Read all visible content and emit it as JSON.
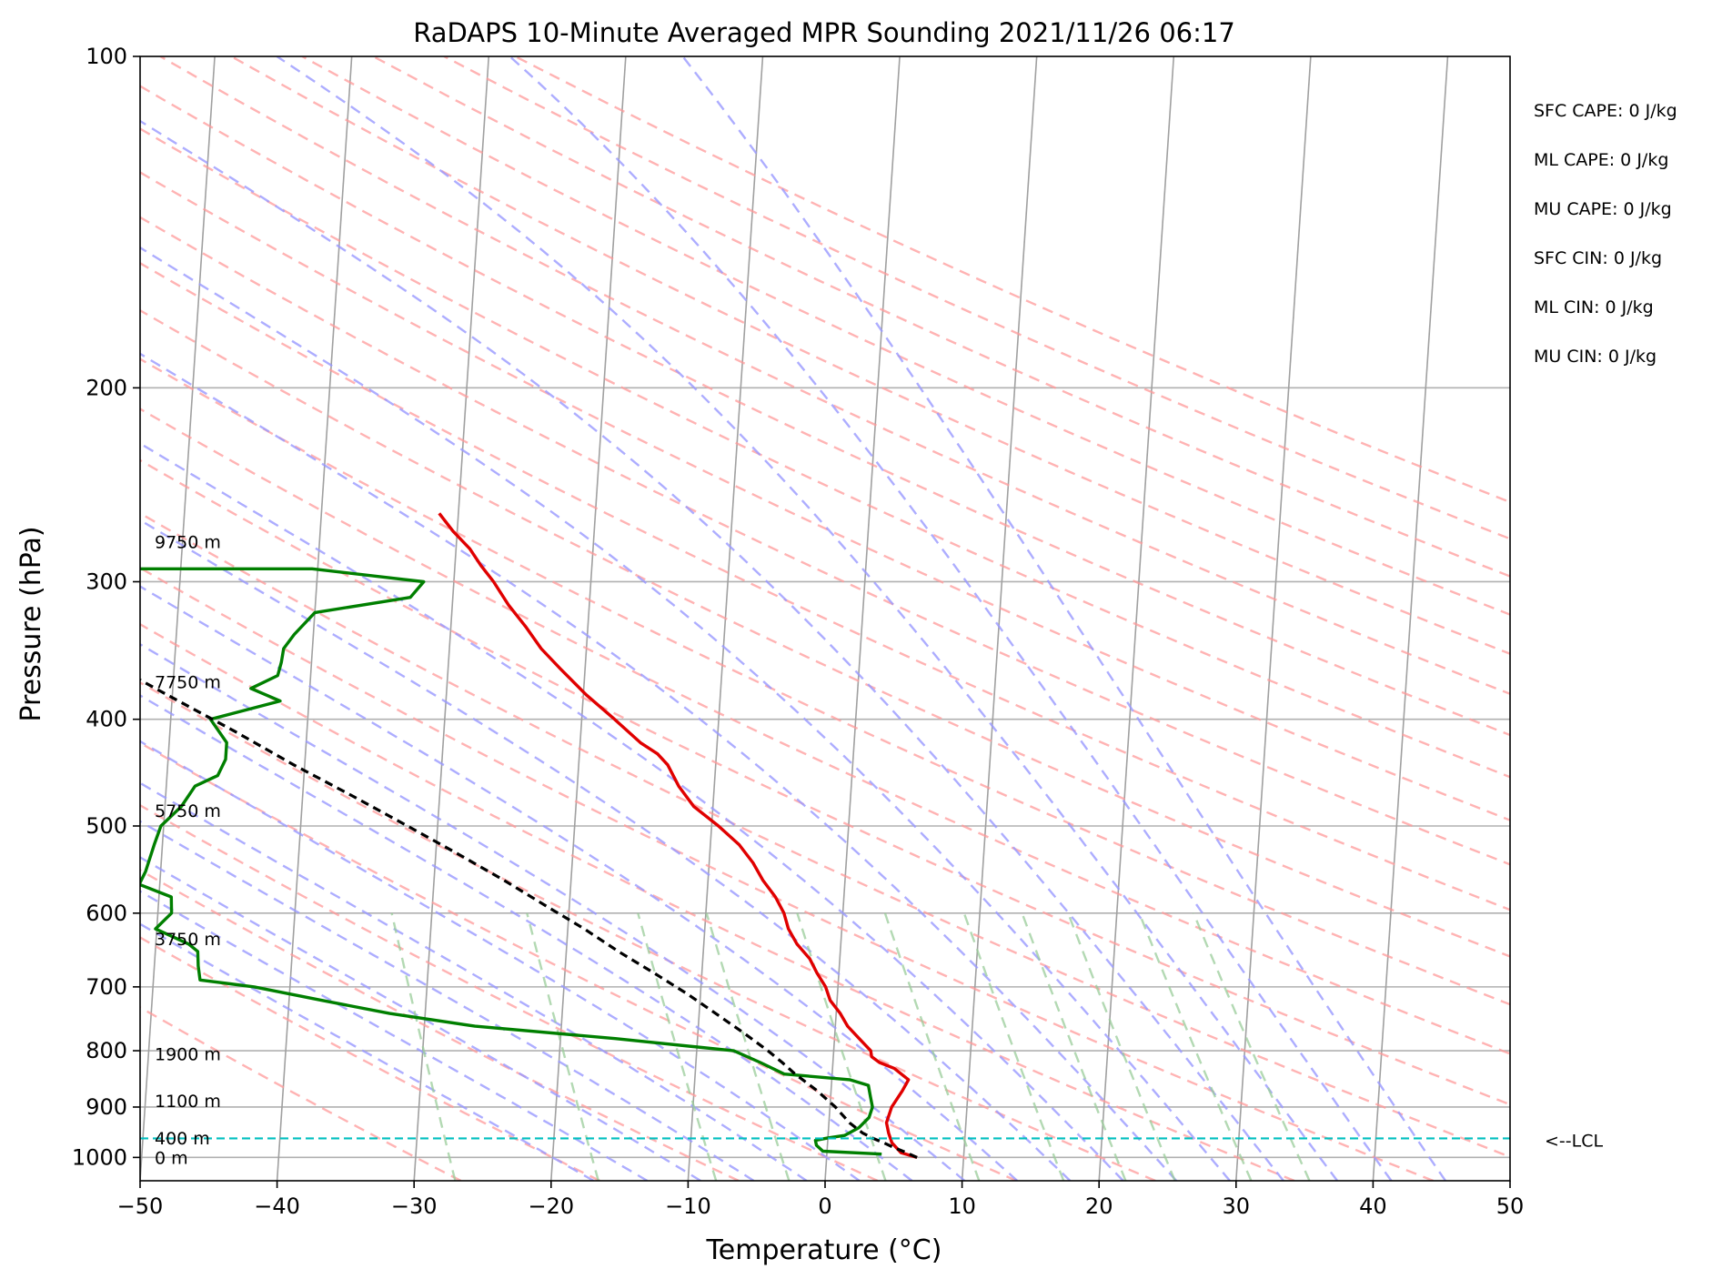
{
  "chart_data": {
    "type": "line",
    "title": "RaDAPS 10-Minute Averaged MPR Sounding 2021/11/26 06:17",
    "xlabel": "Temperature (°C)",
    "ylabel": "Pressure (hPa)",
    "xlim": [
      -50,
      50
    ],
    "ylim": [
      1050,
      100
    ],
    "y_scale": "log",
    "grid": true,
    "skew": "skew-T log-p",
    "x_ticks": [
      -50,
      -40,
      -30,
      -20,
      -10,
      0,
      10,
      20,
      30,
      40,
      50
    ],
    "y_ticks": [
      100,
      200,
      300,
      400,
      500,
      600,
      700,
      800,
      900,
      1000
    ],
    "series": [
      {
        "name": "",
        "role": "temperature",
        "color": "#e00000",
        "points": [
          [
            6.6,
            1000
          ],
          [
            5.4,
            990
          ],
          [
            4.7,
            970
          ],
          [
            4.4,
            950
          ],
          [
            4.2,
            930
          ],
          [
            4.5,
            900
          ],
          [
            5.2,
            870
          ],
          [
            5.6,
            850
          ],
          [
            4.5,
            830
          ],
          [
            3.4,
            820
          ],
          [
            2.8,
            810
          ],
          [
            2.7,
            800
          ],
          [
            1.8,
            780
          ],
          [
            0.9,
            760
          ],
          [
            0.3,
            740
          ],
          [
            -0.5,
            720
          ],
          [
            -0.9,
            700
          ],
          [
            -1.6,
            680
          ],
          [
            -2.2,
            660
          ],
          [
            -3.2,
            640
          ],
          [
            -3.9,
            620
          ],
          [
            -4.3,
            600
          ],
          [
            -5.0,
            580
          ],
          [
            -6.0,
            560
          ],
          [
            -6.8,
            540
          ],
          [
            -7.9,
            520
          ],
          [
            -9.5,
            500
          ],
          [
            -11.4,
            480
          ],
          [
            -12.6,
            460
          ],
          [
            -13.5,
            440
          ],
          [
            -14.3,
            430
          ],
          [
            -15.6,
            420
          ],
          [
            -17.6,
            400
          ],
          [
            -19.8,
            380
          ],
          [
            -21.8,
            360
          ],
          [
            -23.3,
            345
          ],
          [
            -24.5,
            330
          ],
          [
            -25.9,
            315
          ],
          [
            -27.1,
            300
          ],
          [
            -28.1,
            290
          ],
          [
            -29.0,
            280
          ],
          [
            -30.3,
            270
          ],
          [
            -31.4,
            260
          ]
        ]
      },
      {
        "name": "",
        "role": "dewpoint",
        "color": "#007f00",
        "points": [
          [
            4.0,
            993
          ],
          [
            -0.3,
            987
          ],
          [
            -0.8,
            975
          ],
          [
            -0.9,
            965
          ],
          [
            0.0,
            960
          ],
          [
            1.2,
            955
          ],
          [
            2.2,
            940
          ],
          [
            2.9,
            920
          ],
          [
            3.1,
            900
          ],
          [
            2.9,
            880
          ],
          [
            2.7,
            860
          ],
          [
            1.3,
            850
          ],
          [
            -3.5,
            840
          ],
          [
            -5.3,
            820
          ],
          [
            -7.3,
            800
          ],
          [
            -16.0,
            780
          ],
          [
            -26.3,
            760
          ],
          [
            -32.6,
            740
          ],
          [
            -37.6,
            720
          ],
          [
            -42.6,
            700
          ],
          [
            -46.6,
            690
          ],
          [
            -46.8,
            670
          ],
          [
            -46.9,
            650
          ],
          [
            -47.6,
            640
          ],
          [
            -50.1,
            620
          ],
          [
            -49.0,
            600
          ],
          [
            -49.1,
            580
          ],
          [
            -51.5,
            565
          ],
          [
            -51.1,
            550
          ],
          [
            -50.6,
            520
          ],
          [
            -50.2,
            500
          ],
          [
            -48.8,
            480
          ],
          [
            -47.9,
            460
          ],
          [
            -46.3,
            450
          ],
          [
            -45.8,
            435
          ],
          [
            -45.8,
            420
          ],
          [
            -47.1,
            400
          ],
          [
            -42.1,
            385
          ],
          [
            -44.3,
            375
          ],
          [
            -42.4,
            365
          ],
          [
            -42.2,
            355
          ],
          [
            -42.1,
            345
          ],
          [
            -41.4,
            335
          ],
          [
            -40.0,
            320
          ],
          [
            -33.1,
            310
          ],
          [
            -32.2,
            300
          ],
          [
            -40.4,
            292
          ],
          [
            -68.8,
            292
          ]
        ]
      },
      {
        "name": "",
        "role": "parcel-profile",
        "color": "#000000",
        "dashed": true,
        "points": [
          [
            6.6,
            1000
          ],
          [
            5.8,
            990
          ],
          [
            4.9,
            980
          ],
          [
            4.1,
            970
          ],
          [
            3.3,
            961
          ],
          [
            2.5,
            950
          ],
          [
            1.5,
            930
          ],
          [
            0.4,
            900
          ],
          [
            -1.0,
            870
          ],
          [
            -2.7,
            840
          ],
          [
            -3.7,
            820
          ],
          [
            -4.8,
            800
          ],
          [
            -6.7,
            770
          ],
          [
            -8.8,
            740
          ],
          [
            -11.0,
            710
          ],
          [
            -13.5,
            680
          ],
          [
            -16.2,
            650
          ],
          [
            -18.8,
            620
          ],
          [
            -21.8,
            590
          ],
          [
            -24.9,
            560
          ],
          [
            -28.4,
            530
          ],
          [
            -32.2,
            500
          ],
          [
            -36.3,
            470
          ],
          [
            -40.8,
            440
          ],
          [
            -45.3,
            410
          ],
          [
            -50.4,
            380
          ],
          [
            -55.8,
            350
          ],
          [
            -61.7,
            320
          ],
          [
            -67.9,
            290
          ],
          [
            -74.5,
            262
          ]
        ]
      }
    ],
    "lcl": {
      "pressure": 961,
      "label": "<--LCL"
    },
    "height_labels": [
      {
        "text": "0 m",
        "p": 1000
      },
      {
        "text": "400 m",
        "p": 960
      },
      {
        "text": "1100 m",
        "p": 888
      },
      {
        "text": "1900 m",
        "p": 805
      },
      {
        "text": "3750 m",
        "p": 633
      },
      {
        "text": "5750 m",
        "p": 484
      },
      {
        "text": "7750 m",
        "p": 370
      },
      {
        "text": "9750 m",
        "p": 276
      }
    ],
    "indices": [
      "SFC CAPE: 0 J/kg",
      "ML CAPE: 0 J/kg",
      "MU CAPE: 0 J/kg",
      "SFC CIN: 0 J/kg",
      "ML CIN: 0 J/kg",
      "MU CIN: 0 J/kg"
    ],
    "reference_lines": {
      "isotherm_color": "#a0a0a0",
      "dry_adiabat_color": "#ff9999",
      "moist_adiabat_color": "#9999ff",
      "mixing_ratio_color": "#99cc99"
    }
  }
}
